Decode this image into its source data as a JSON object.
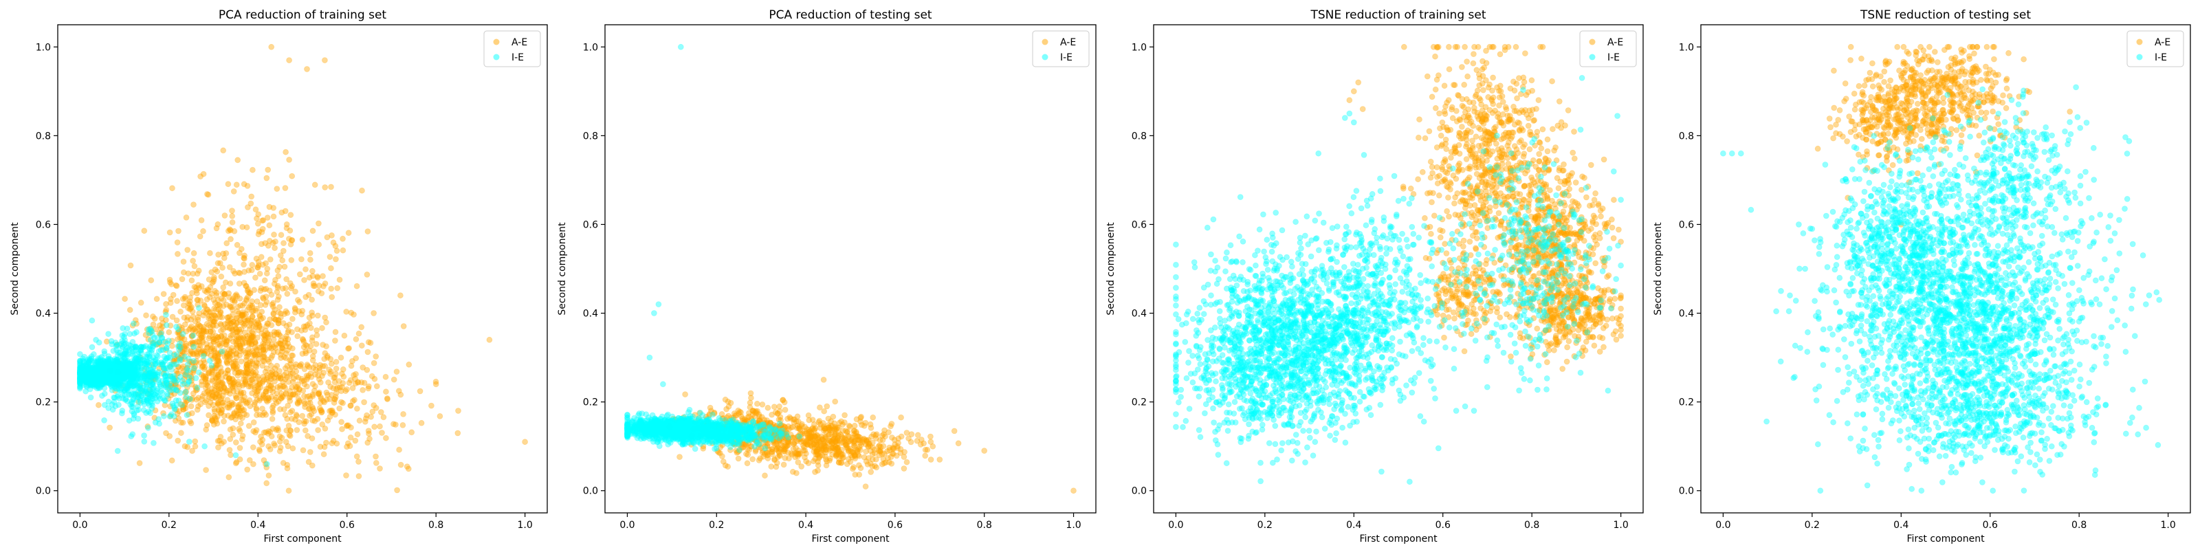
{
  "chart_data": [
    {
      "type": "scatter",
      "title": "PCA reduction of training set",
      "xlabel": "First component",
      "ylabel": "Second component",
      "xlim": [
        -0.05,
        1.05
      ],
      "ylim": [
        -0.05,
        1.05
      ],
      "xticks": [
        "0.0",
        "0.2",
        "0.4",
        "0.6",
        "0.8",
        "1.0"
      ],
      "yticks": [
        "0.0",
        "0.2",
        "0.4",
        "0.6",
        "0.8",
        "1.0"
      ],
      "legend": "top-right",
      "series": [
        {
          "name": "A-E",
          "color": "#ffa500",
          "n": 1800,
          "clusters": [
            {
              "w": 0.55,
              "cx": 0.32,
              "cy": 0.3,
              "sx": 0.09,
              "sy": 0.09
            },
            {
              "w": 0.25,
              "cx": 0.42,
              "cy": 0.42,
              "sx": 0.1,
              "sy": 0.14
            },
            {
              "w": 0.2,
              "cx": 0.5,
              "cy": 0.2,
              "sx": 0.12,
              "sy": 0.07
            }
          ],
          "extra": [
            [
              0.43,
              1.0
            ],
            [
              0.47,
              0.97
            ],
            [
              0.51,
              0.95
            ],
            [
              0.55,
              0.97
            ],
            [
              0.92,
              0.34
            ],
            [
              1.0,
              0.11
            ],
            [
              0.85,
              0.18
            ],
            [
              0.8,
              0.24
            ],
            [
              0.72,
              0.44
            ],
            [
              0.66,
              0.4
            ]
          ]
        },
        {
          "name": "I-E",
          "color": "#00ffff",
          "n": 1500,
          "clusters": [
            {
              "w": 0.6,
              "cx": 0.05,
              "cy": 0.265,
              "sx": 0.035,
              "sy": 0.015
            },
            {
              "w": 0.25,
              "cx": 0.12,
              "cy": 0.27,
              "sx": 0.04,
              "sy": 0.04
            },
            {
              "w": 0.15,
              "cx": 0.18,
              "cy": 0.25,
              "sx": 0.05,
              "sy": 0.06
            }
          ],
          "extra": [
            [
              0.35,
              0.08
            ],
            [
              0.42,
              0.06
            ],
            [
              0.28,
              0.1
            ]
          ]
        }
      ]
    },
    {
      "type": "scatter",
      "title": "PCA reduction of testing set",
      "xlabel": "First component",
      "ylabel": "Second component",
      "xlim": [
        -0.05,
        1.05
      ],
      "ylim": [
        -0.05,
        1.05
      ],
      "xticks": [
        "0.0",
        "0.2",
        "0.4",
        "0.6",
        "0.8",
        "1.0"
      ],
      "yticks": [
        "0.0",
        "0.2",
        "0.4",
        "0.6",
        "0.8",
        "1.0"
      ],
      "legend": "top-right",
      "series": [
        {
          "name": "A-E",
          "color": "#ffa500",
          "n": 900,
          "clusters": [
            {
              "w": 0.5,
              "cx": 0.35,
              "cy": 0.12,
              "sx": 0.08,
              "sy": 0.03
            },
            {
              "w": 0.35,
              "cx": 0.5,
              "cy": 0.1,
              "sx": 0.08,
              "sy": 0.025
            },
            {
              "w": 0.15,
              "cx": 0.25,
              "cy": 0.15,
              "sx": 0.06,
              "sy": 0.03
            }
          ],
          "extra": [
            [
              0.44,
              0.25
            ],
            [
              0.8,
              0.09
            ],
            [
              0.7,
              0.07
            ],
            [
              0.68,
              0.11
            ],
            [
              1.0,
              0.0
            ],
            [
              0.62,
              0.05
            ]
          ]
        },
        {
          "name": "I-E",
          "color": "#00ffff",
          "n": 1500,
          "clusters": [
            {
              "w": 0.7,
              "cx": 0.1,
              "cy": 0.14,
              "sx": 0.06,
              "sy": 0.012
            },
            {
              "w": 0.3,
              "cx": 0.22,
              "cy": 0.13,
              "sx": 0.06,
              "sy": 0.012
            }
          ],
          "extra": [
            [
              0.12,
              1.0
            ],
            [
              0.07,
              0.42
            ],
            [
              0.06,
              0.4
            ],
            [
              0.05,
              0.3
            ],
            [
              0.08,
              0.24
            ]
          ]
        }
      ]
    },
    {
      "type": "scatter",
      "title": "TSNE reduction of training set",
      "xlabel": "First component",
      "ylabel": "Second component",
      "xlim": [
        -0.05,
        1.05
      ],
      "ylim": [
        -0.05,
        1.05
      ],
      "xticks": [
        "0.0",
        "0.2",
        "0.4",
        "0.6",
        "0.8",
        "1.0"
      ],
      "yticks": [
        "0.0",
        "0.2",
        "0.4",
        "0.6",
        "0.8",
        "1.0"
      ],
      "legend": "top-right",
      "series": [
        {
          "name": "A-E",
          "color": "#ffa500",
          "n": 1700,
          "clusters": [
            {
              "w": 0.4,
              "cx": 0.7,
              "cy": 0.75,
              "sx": 0.07,
              "sy": 0.12
            },
            {
              "w": 0.35,
              "cx": 0.85,
              "cy": 0.55,
              "sx": 0.06,
              "sy": 0.1
            },
            {
              "w": 0.15,
              "cx": 0.9,
              "cy": 0.4,
              "sx": 0.05,
              "sy": 0.04
            },
            {
              "w": 0.1,
              "cx": 0.65,
              "cy": 0.45,
              "sx": 0.04,
              "sy": 0.05
            }
          ],
          "extra": [
            [
              0.4,
              0.9
            ],
            [
              0.41,
              0.92
            ],
            [
              0.39,
              0.88
            ],
            [
              0.42,
              0.86
            ]
          ]
        },
        {
          "name": "I-E",
          "color": "#00ffff",
          "n": 2600,
          "clusters": [
            {
              "w": 0.4,
              "cx": 0.3,
              "cy": 0.35,
              "sx": 0.12,
              "sy": 0.1
            },
            {
              "w": 0.3,
              "cx": 0.2,
              "cy": 0.3,
              "sx": 0.1,
              "sy": 0.1
            },
            {
              "w": 0.15,
              "cx": 0.45,
              "cy": 0.45,
              "sx": 0.08,
              "sy": 0.1
            },
            {
              "w": 0.15,
              "cx": 0.8,
              "cy": 0.5,
              "sx": 0.08,
              "sy": 0.12
            }
          ],
          "extra": [
            [
              0.39,
              0.85
            ],
            [
              0.38,
              0.84
            ],
            [
              0.4,
              0.83
            ],
            [
              0.67,
              0.18
            ],
            [
              0.65,
              0.19
            ],
            [
              0.63,
              0.18
            ]
          ]
        }
      ]
    },
    {
      "type": "scatter",
      "title": "TSNE reduction of testing set",
      "xlabel": "First component",
      "ylabel": "Second component",
      "xlim": [
        -0.05,
        1.05
      ],
      "ylim": [
        -0.05,
        1.05
      ],
      "xticks": [
        "0.0",
        "0.2",
        "0.4",
        "0.6",
        "0.8",
        "1.0"
      ],
      "yticks": [
        "0.0",
        "0.2",
        "0.4",
        "0.6",
        "0.8",
        "1.0"
      ],
      "legend": "top-right",
      "series": [
        {
          "name": "A-E",
          "color": "#ffa500",
          "n": 700,
          "clusters": [
            {
              "w": 0.6,
              "cx": 0.5,
              "cy": 0.9,
              "sx": 0.08,
              "sy": 0.05
            },
            {
              "w": 0.4,
              "cx": 0.38,
              "cy": 0.84,
              "sx": 0.06,
              "sy": 0.05
            }
          ],
          "extra": [
            [
              0.28,
              0.66
            ],
            [
              0.4,
              0.6
            ]
          ]
        },
        {
          "name": "I-E",
          "color": "#00ffff",
          "n": 3200,
          "clusters": [
            {
              "w": 0.6,
              "cx": 0.55,
              "cy": 0.35,
              "sx": 0.14,
              "sy": 0.13
            },
            {
              "w": 0.2,
              "cx": 0.4,
              "cy": 0.55,
              "sx": 0.08,
              "sy": 0.1
            },
            {
              "w": 0.12,
              "cx": 0.65,
              "cy": 0.7,
              "sx": 0.08,
              "sy": 0.08
            },
            {
              "w": 0.08,
              "cx": 0.6,
              "cy": 0.15,
              "sx": 0.12,
              "sy": 0.05
            }
          ],
          "extra": [
            [
              0.0,
              0.76
            ],
            [
              0.02,
              0.76
            ],
            [
              0.04,
              0.76
            ],
            [
              0.13,
              0.45
            ],
            [
              0.15,
              0.44
            ],
            [
              0.17,
              0.6
            ],
            [
              0.18,
              0.58
            ],
            [
              0.2,
              0.59
            ],
            [
              0.87,
              0.62
            ],
            [
              0.89,
              0.61
            ],
            [
              0.95,
              0.42
            ],
            [
              0.98,
              0.43
            ],
            [
              0.88,
              0.58
            ]
          ]
        }
      ]
    }
  ]
}
